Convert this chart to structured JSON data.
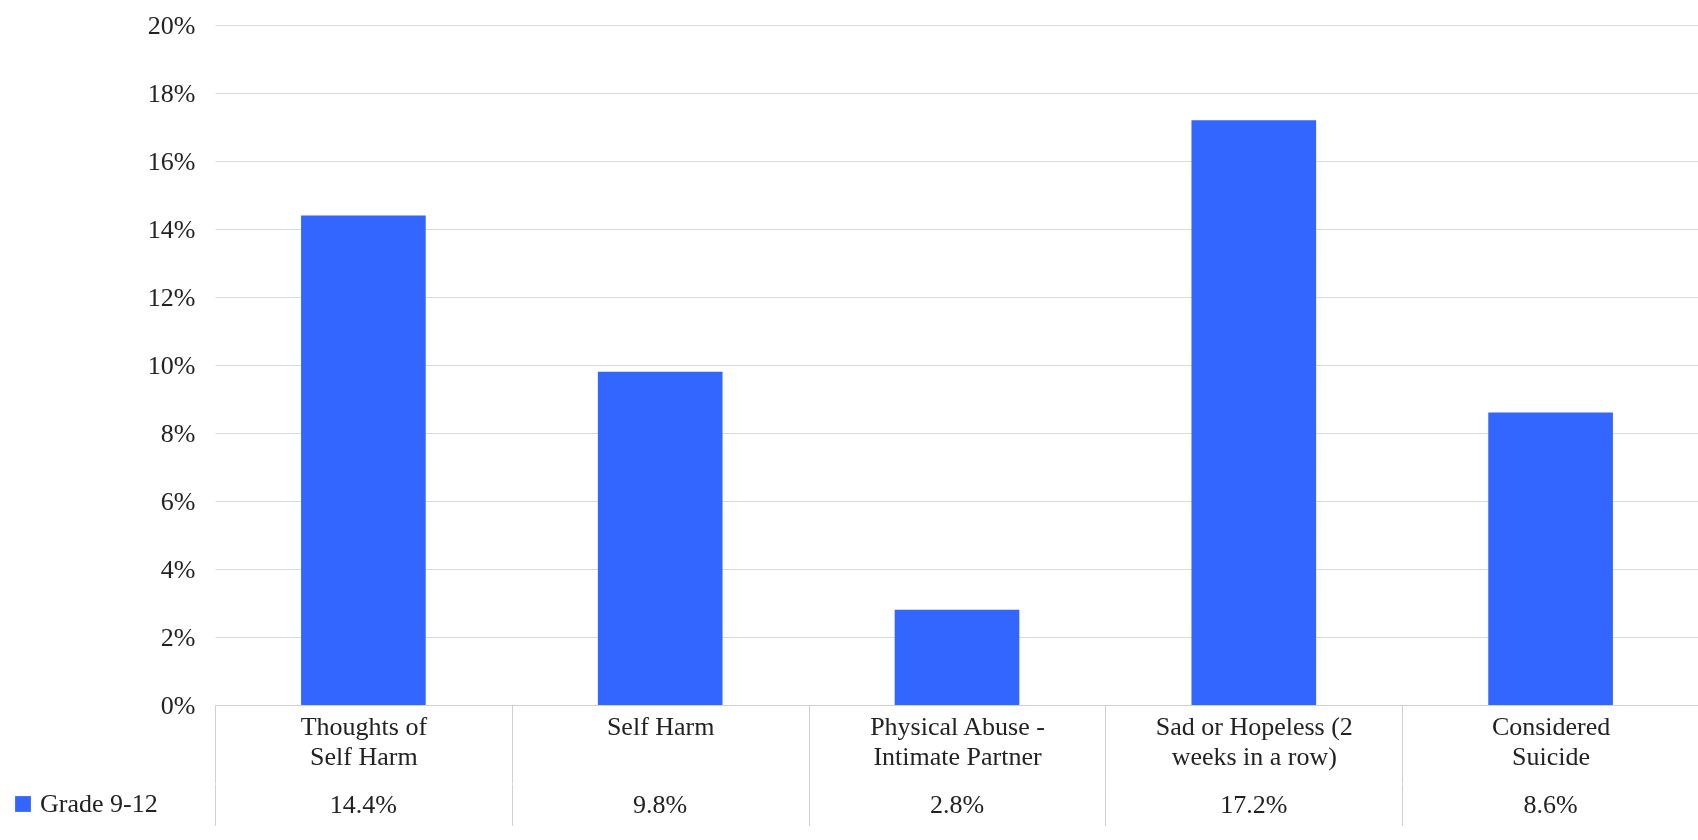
{
  "chart_data": {
    "type": "bar",
    "categories": [
      "Thoughts of Self Harm",
      "Self Harm",
      "Physical Abuse - Intimate Partner",
      "Sad or Hopeless (2 weeks in a row)",
      "Considered Suicide"
    ],
    "series": [
      {
        "name": "Grade  9-12",
        "color": "#3366ff",
        "values": [
          14.4,
          9.8,
          2.8,
          17.2,
          8.6
        ],
        "value_labels": [
          "14.4%",
          "9.8%",
          "2.8%",
          "17.2%",
          "8.6%"
        ]
      }
    ],
    "ylim": [
      0,
      20
    ],
    "yticks": [
      {
        "value": 0,
        "label": "0%"
      },
      {
        "value": 2,
        "label": "2%"
      },
      {
        "value": 4,
        "label": "4%"
      },
      {
        "value": 6,
        "label": "6%"
      },
      {
        "value": 8,
        "label": "8%"
      },
      {
        "value": 10,
        "label": "10%"
      },
      {
        "value": 12,
        "label": "12%"
      },
      {
        "value": 14,
        "label": "14%"
      },
      {
        "value": 16,
        "label": "16%"
      },
      {
        "value": 18,
        "label": "18%"
      },
      {
        "value": 20,
        "label": "20%"
      }
    ],
    "grid": "y",
    "legend": "bottom left"
  }
}
